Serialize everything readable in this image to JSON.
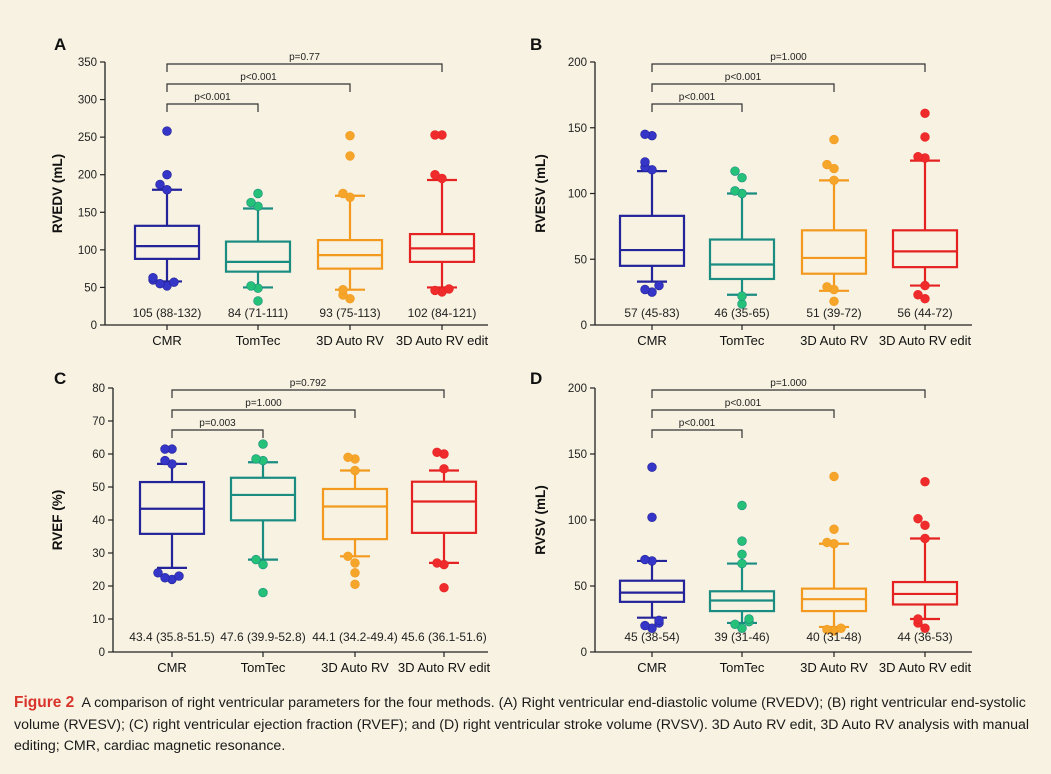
{
  "colors": [
    "#23239a",
    "#1a8c82",
    "#f39a1e",
    "#e52222"
  ],
  "point_colors": [
    "#3535c8",
    "#25c178",
    "#f5a52a",
    "#ef2b2b"
  ],
  "caption": {
    "label": "Figure 2",
    "text": "A comparison of right ventricular parameters for the four methods. (A) Right ventricular end-diastolic volume (RVEDV); (B) right ventricular end-systolic volume (RVESV); (C) right ventricular ejection fraction (RVEF); and (D) right ventricular stroke volume (RVSV). 3D Auto RV edit, 3D Auto RV analysis with manual editing; CMR, cardiac magnetic resonance."
  },
  "chart_data": [
    {
      "panel": "A",
      "type": "box",
      "ylabel": "RVEDV (mL)",
      "ylim": [
        0,
        350
      ],
      "yticks": [
        0,
        50,
        100,
        150,
        200,
        250,
        300,
        350
      ],
      "categories": [
        "CMR",
        "TomTec",
        "3D Auto RV",
        "3D Auto RV edit"
      ],
      "boxes": [
        {
          "q1": 88,
          "median": 105,
          "q3": 132,
          "wlo": 58,
          "whi": 180,
          "outliers": [
            52,
            55,
            57,
            60,
            63,
            180,
            187,
            200,
            258
          ]
        },
        {
          "q1": 71,
          "median": 84,
          "q3": 111,
          "wlo": 50,
          "whi": 155,
          "outliers": [
            32,
            49,
            52,
            158,
            163,
            175
          ]
        },
        {
          "q1": 75,
          "median": 93,
          "q3": 113,
          "wlo": 47,
          "whi": 172,
          "outliers": [
            35,
            40,
            47,
            170,
            175,
            225,
            252
          ]
        },
        {
          "q1": 84,
          "median": 102,
          "q3": 121,
          "wlo": 50,
          "whi": 193,
          "outliers": [
            44,
            46,
            48,
            195,
            200,
            253,
            253
          ]
        }
      ],
      "summaries": [
        "105 (88-132)",
        "84 (71-111)",
        "93 (75-113)",
        "102 (84-121)"
      ],
      "comparisons": [
        {
          "to": 1,
          "label": "p<0.001"
        },
        {
          "to": 2,
          "label": "p<0.001"
        },
        {
          "to": 3,
          "label": "p=0.77"
        }
      ]
    },
    {
      "panel": "B",
      "type": "box",
      "ylabel": "RVESV (mL)",
      "ylim": [
        0,
        200
      ],
      "yticks": [
        0,
        50,
        100,
        150,
        200
      ],
      "categories": [
        "CMR",
        "TomTec",
        "3D Auto RV",
        "3D Auto RV edit"
      ],
      "boxes": [
        {
          "q1": 45,
          "median": 57,
          "q3": 83,
          "wlo": 33,
          "whi": 117,
          "outliers": [
            25,
            27,
            30,
            118,
            120,
            124,
            144,
            145
          ]
        },
        {
          "q1": 35,
          "median": 46,
          "q3": 65,
          "wlo": 23,
          "whi": 100,
          "outliers": [
            16,
            22,
            100,
            102,
            112,
            117
          ]
        },
        {
          "q1": 39,
          "median": 51,
          "q3": 72,
          "wlo": 26,
          "whi": 110,
          "outliers": [
            18,
            27,
            29,
            110,
            119,
            122,
            141
          ]
        },
        {
          "q1": 44,
          "median": 56,
          "q3": 72,
          "wlo": 30,
          "whi": 125,
          "outliers": [
            20,
            23,
            30,
            127,
            128,
            143,
            161
          ]
        }
      ],
      "summaries": [
        "57 (45-83)",
        "46 (35-65)",
        "51 (39-72)",
        "56 (44-72)"
      ],
      "comparisons": [
        {
          "to": 1,
          "label": "p<0.001"
        },
        {
          "to": 2,
          "label": "p<0.001"
        },
        {
          "to": 3,
          "label": "p=1.000"
        }
      ]
    },
    {
      "panel": "C",
      "type": "box",
      "ylabel": "RVEF (%)",
      "ylim": [
        0,
        80
      ],
      "yticks": [
        0,
        10,
        20,
        30,
        40,
        50,
        60,
        70,
        80
      ],
      "categories": [
        "CMR",
        "TomTec",
        "3D Auto RV",
        "3D Auto RV edit"
      ],
      "boxes": [
        {
          "q1": 35.8,
          "median": 43.4,
          "q3": 51.5,
          "wlo": 25.5,
          "whi": 57,
          "outliers": [
            22,
            22.5,
            23,
            24,
            57,
            58,
            61.5,
            61.5
          ]
        },
        {
          "q1": 39.9,
          "median": 47.6,
          "q3": 52.8,
          "wlo": 28,
          "whi": 57.5,
          "outliers": [
            18,
            26.5,
            28,
            58,
            58.5,
            63
          ]
        },
        {
          "q1": 34.2,
          "median": 44.1,
          "q3": 49.4,
          "wlo": 29,
          "whi": 55,
          "outliers": [
            20.5,
            24,
            27,
            29,
            55,
            58.5,
            59
          ]
        },
        {
          "q1": 36.1,
          "median": 45.6,
          "q3": 51.6,
          "wlo": 27,
          "whi": 55,
          "outliers": [
            19.5,
            26.5,
            27,
            55.5,
            60,
            60.5
          ]
        }
      ],
      "summaries": [
        "43.4 (35.8-51.5)",
        "47.6 (39.9-52.8)",
        "44.1 (34.2-49.4)",
        "45.6 (36.1-51.6)"
      ],
      "comparisons": [
        {
          "to": 1,
          "label": "p=0.003"
        },
        {
          "to": 2,
          "label": "p=1.000"
        },
        {
          "to": 3,
          "label": "p=0.792"
        }
      ]
    },
    {
      "panel": "D",
      "type": "box",
      "ylabel": "RVSV (mL)",
      "ylim": [
        0,
        200
      ],
      "yticks": [
        0,
        50,
        100,
        150,
        200
      ],
      "categories": [
        "CMR",
        "TomTec",
        "3D Auto RV",
        "3D Auto RV edit"
      ],
      "boxes": [
        {
          "q1": 38,
          "median": 45,
          "q3": 54,
          "wlo": 26,
          "whi": 69,
          "outliers": [
            18,
            20,
            22,
            24,
            69,
            70,
            102,
            140
          ]
        },
        {
          "q1": 31,
          "median": 39,
          "q3": 46,
          "wlo": 22,
          "whi": 67,
          "outliers": [
            18,
            21,
            23,
            25,
            67,
            74,
            84,
            111
          ]
        },
        {
          "q1": 31,
          "median": 40,
          "q3": 48,
          "wlo": 19,
          "whi": 82,
          "outliers": [
            16,
            17,
            18,
            82,
            83,
            93,
            133
          ]
        },
        {
          "q1": 36,
          "median": 44,
          "q3": 53,
          "wlo": 25,
          "whi": 86,
          "outliers": [
            18,
            22,
            25,
            86,
            96,
            101,
            129
          ]
        }
      ],
      "summaries": [
        "45 (38-54)",
        "39 (31-46)",
        "40 (31-48)",
        "44 (36-53)"
      ],
      "comparisons": [
        {
          "to": 1,
          "label": "p<0.001"
        },
        {
          "to": 2,
          "label": "p<0.001"
        },
        {
          "to": 3,
          "label": "p=1.000"
        }
      ]
    }
  ]
}
